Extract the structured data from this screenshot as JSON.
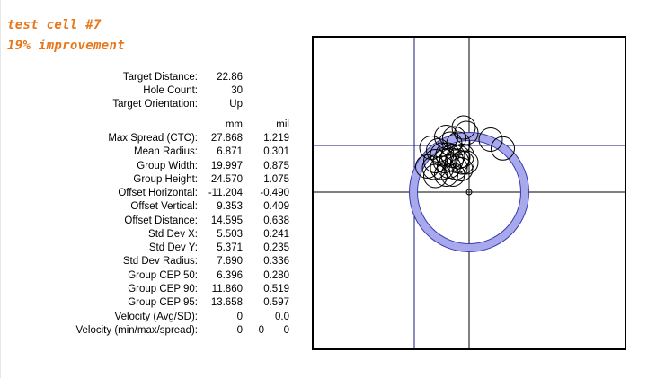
{
  "notes": {
    "line1": "test cell #7",
    "line2": "19% improvement",
    "color": "#e8761a"
  },
  "info": [
    {
      "label": "Target Distance:",
      "value": "22.86"
    },
    {
      "label": "Hole Count:",
      "value": "30"
    },
    {
      "label": "Target Orientation:",
      "value": "Up"
    }
  ],
  "units": {
    "mm": "mm",
    "mil": "mil"
  },
  "stats": [
    {
      "label": "Max Spread (CTC):",
      "mm": "27.868",
      "mil": "1.219"
    },
    {
      "label": "Mean Radius:",
      "mm": "6.871",
      "mil": "0.301"
    },
    {
      "label": "Group Width:",
      "mm": "19.997",
      "mil": "0.875"
    },
    {
      "label": "Group Height:",
      "mm": "24.570",
      "mil": "1.075"
    },
    {
      "label": "Offset Horizontal:",
      "mm": "-11.204",
      "mil": "-0.490"
    },
    {
      "label": "Offset Vertical:",
      "mm": "9.353",
      "mil": "0.409"
    },
    {
      "label": "Offset Distance:",
      "mm": "14.595",
      "mil": "0.638"
    },
    {
      "label": "Std Dev X:",
      "mm": "5.503",
      "mil": "0.241"
    },
    {
      "label": "Std Dev Y:",
      "mm": "5.371",
      "mil": "0.235"
    },
    {
      "label": "Std Dev Radius:",
      "mm": "7.690",
      "mil": "0.336"
    },
    {
      "label": "Group CEP 50:",
      "mm": "6.396",
      "mil": "0.280"
    },
    {
      "label": "Group CEP 90:",
      "mm": "11.860",
      "mil": "0.519"
    },
    {
      "label": "Group CEP 95:",
      "mm": "13.658",
      "mil": "0.597"
    }
  ],
  "velocity_avg": {
    "label": "Velocity (Avg/SD):",
    "avg": "0",
    "sd": "0.0"
  },
  "velocity_minmax": {
    "label": "Velocity (min/max/spread):",
    "min": "0",
    "max": "0",
    "spread": "0"
  },
  "target_colors": {
    "group_ring": "#a8a8ec",
    "group_ring_stroke": "#3a3ab0"
  },
  "holes": [
    [
      34,
      5.5
    ],
    [
      25,
      12
    ],
    [
      5,
      21
    ],
    [
      7,
      17
    ],
    [
      -8,
      14
    ],
    [
      -2,
      13
    ],
    [
      -5,
      9
    ],
    [
      1,
      9
    ],
    [
      -19,
      6
    ],
    [
      -14,
      4
    ],
    [
      -11,
      1
    ],
    [
      -7,
      1
    ],
    [
      -3,
      0
    ],
    [
      1,
      -1
    ],
    [
      4,
      0
    ],
    [
      0,
      -4
    ],
    [
      -16,
      -4
    ],
    [
      -9,
      -4
    ],
    [
      -4,
      -3
    ],
    [
      4,
      -5
    ],
    [
      7,
      -5
    ],
    [
      -22,
      -8
    ],
    [
      -17,
      -9
    ],
    [
      -11,
      -9
    ],
    [
      -6,
      -8
    ],
    [
      -1,
      -9
    ],
    [
      3,
      -10
    ],
    [
      -16,
      -15
    ],
    [
      -8,
      -14
    ],
    [
      -3,
      -14
    ]
  ]
}
